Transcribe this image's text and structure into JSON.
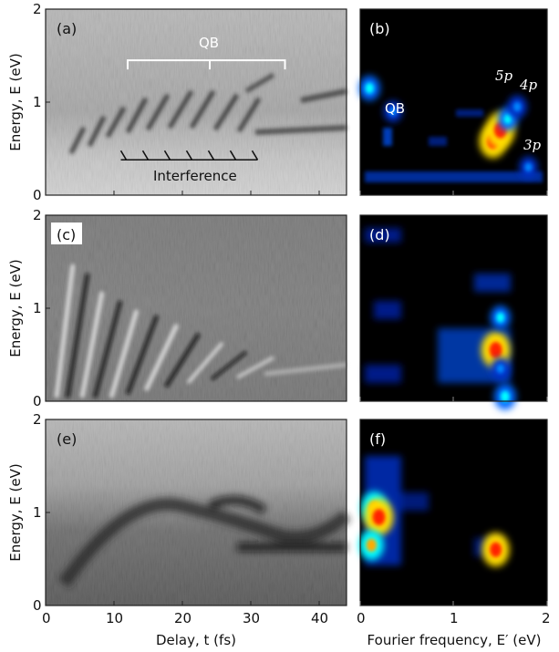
{
  "chart_data": [
    {
      "panel": "(a)",
      "type": "heatmap",
      "colormap": "grayscale",
      "xlabel": "",
      "ylabel": "Energy, E (eV)",
      "xlim": [
        0,
        44
      ],
      "ylim": [
        0,
        2
      ],
      "yticks": [
        "0",
        "1",
        "2"
      ],
      "annotations": {
        "qb": "QB",
        "interference": "Interference",
        "qb_bracket_x": [
          12,
          24,
          35
        ],
        "qb_bracket_y": 1.45,
        "interference_x": [
          11,
          31
        ],
        "interference_y": 0.38
      }
    },
    {
      "panel": "(b)",
      "type": "heatmap",
      "colormap": "jet",
      "xlabel": "",
      "ylabel": "",
      "xlim": [
        0,
        2
      ],
      "ylim": [
        0,
        2
      ],
      "annotations": {
        "qb": "QB",
        "states": [
          "5p",
          "4p",
          "3p"
        ]
      },
      "peaks": [
        {
          "x": 0.1,
          "y": 1.15,
          "level": 0.55
        },
        {
          "x": 0.35,
          "y": 0.9,
          "level": 0.4
        },
        {
          "x": 1.42,
          "y": 0.58,
          "level": 0.9
        },
        {
          "x": 1.5,
          "y": 0.7,
          "level": 1.0
        },
        {
          "x": 1.58,
          "y": 0.82,
          "level": 0.5
        },
        {
          "x": 1.68,
          "y": 0.95,
          "level": 0.45
        },
        {
          "x": 1.8,
          "y": 0.3,
          "level": 0.4
        }
      ]
    },
    {
      "panel": "(c)",
      "type": "heatmap",
      "colormap": "grayscale",
      "xlabel": "",
      "ylabel": "Energy, E (eV)",
      "xlim": [
        0,
        44
      ],
      "ylim": [
        0,
        2
      ],
      "yticks": [
        "0",
        "1",
        "2"
      ]
    },
    {
      "panel": "(d)",
      "type": "heatmap",
      "colormap": "jet",
      "xlabel": "",
      "ylabel": "",
      "xlim": [
        0,
        2
      ],
      "ylim": [
        0,
        2
      ],
      "peaks": [
        {
          "x": 1.45,
          "y": 0.55,
          "level": 1.0
        },
        {
          "x": 1.5,
          "y": 0.9,
          "level": 0.5
        },
        {
          "x": 1.5,
          "y": 0.35,
          "level": 0.45
        },
        {
          "x": 1.55,
          "y": 0.05,
          "level": 0.6
        }
      ]
    },
    {
      "panel": "(e)",
      "type": "heatmap",
      "colormap": "grayscale",
      "xlabel": "Delay, t (fs)",
      "ylabel": "Energy, E (eV)",
      "xlim": [
        0,
        44
      ],
      "ylim": [
        0,
        2
      ],
      "xticks": [
        "0",
        "10",
        "20",
        "30",
        "40"
      ],
      "yticks": [
        "0",
        "1",
        "2"
      ]
    },
    {
      "panel": "(f)",
      "type": "heatmap",
      "colormap": "jet",
      "xlabel": "Fourier frequency, E′ (eV)",
      "ylabel": "",
      "xlim": [
        0,
        2
      ],
      "ylim": [
        0,
        2
      ],
      "xticks": [
        "0",
        "1",
        "2"
      ],
      "peaks": [
        {
          "x": 0.15,
          "y": 1.05,
          "level": 0.85
        },
        {
          "x": 0.2,
          "y": 0.95,
          "level": 1.0
        },
        {
          "x": 0.12,
          "y": 0.65,
          "level": 0.75
        },
        {
          "x": 1.45,
          "y": 0.6,
          "level": 0.9
        }
      ]
    }
  ],
  "colors": {
    "jet_background": "#000000",
    "gray_light": "#f4f4f4",
    "gray_dark": "#1a1a1a"
  }
}
